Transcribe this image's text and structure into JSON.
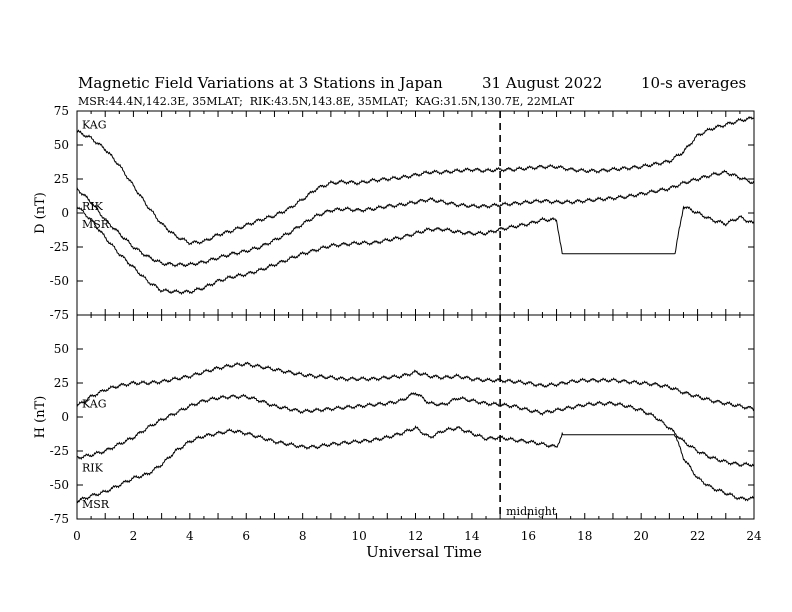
{
  "chart_data": {
    "type": "line",
    "title": "Magnetic Field Variations at 3 Stations in Japan",
    "date": "31  August  2022",
    "averaging": "10-s averages",
    "subtitle": "MSR:44.4N,142.3E, 35MLAT;  RIK:43.5N,143.8E, 35MLAT;  KAG:31.5N,130.7E, 22MLAT",
    "xlabel": "Universal Time",
    "xlim": [
      0,
      24
    ],
    "x_ticks": [
      "0",
      "2",
      "4",
      "6",
      "8",
      "10",
      "12",
      "14",
      "16",
      "18",
      "20",
      "22",
      "24"
    ],
    "y_ticks": [
      "75",
      "50",
      "25",
      "0",
      "-25",
      "-50",
      "-75"
    ],
    "annotation": {
      "text": "midnight",
      "x": 15
    },
    "panels": [
      {
        "ylabel": "D (nT)",
        "ylim": [
          -75,
          75
        ],
        "series": [
          {
            "name": "KAG",
            "x": [
              0,
              0.5,
              1,
              1.5,
              2,
              2.5,
              3,
              3.5,
              4,
              4.5,
              5,
              5.5,
              6,
              6.5,
              7,
              7.5,
              8,
              8.5,
              9,
              9.5,
              10,
              10.5,
              11,
              11.5,
              12,
              12.5,
              13,
              13.5,
              14,
              14.5,
              15,
              15.5,
              16,
              16.5,
              17,
              17.5,
              18,
              18.5,
              19,
              19.5,
              20,
              20.5,
              21,
              21.5,
              22,
              22.5,
              23,
              23.5,
              24
            ],
            "y": [
              60,
              55,
              47,
              35,
              20,
              5,
              -8,
              -17,
              -22,
              -21,
              -16,
              -13,
              -9,
              -5,
              -2,
              3,
              10,
              18,
              22,
              23,
              22,
              24,
              25,
              26,
              28,
              30,
              30,
              31,
              32,
              31,
              32,
              32,
              33,
              34,
              34,
              32,
              31,
              31,
              32,
              33,
              34,
              36,
              38,
              45,
              57,
              62,
              65,
              68,
              70
            ],
            "label_y": 65
          },
          {
            "name": "RIK",
            "x": [
              0,
              0.5,
              1,
              1.5,
              2,
              2.5,
              3,
              3.5,
              4,
              4.5,
              5,
              5.5,
              6,
              6.5,
              7,
              7.5,
              8,
              8.5,
              9,
              9.5,
              10,
              10.5,
              11,
              11.5,
              12,
              12.5,
              13,
              13.5,
              14,
              14.5,
              15,
              15.5,
              16,
              16.5,
              17,
              17.5,
              18,
              18.5,
              19,
              19.5,
              20,
              20.5,
              21,
              21.5,
              22,
              22.5,
              23,
              23.5,
              24
            ],
            "y": [
              18,
              8,
              -5,
              -15,
              -25,
              -32,
              -37,
              -38,
              -38,
              -36,
              -33,
              -30,
              -28,
              -25,
              -20,
              -15,
              -8,
              -2,
              2,
              3,
              2,
              3,
              5,
              6,
              8,
              10,
              8,
              6,
              5,
              5,
              6,
              7,
              8,
              9,
              8,
              8,
              9,
              10,
              11,
              12,
              14,
              16,
              18,
              22,
              25,
              28,
              30,
              26,
              22
            ],
            "label_y": 5
          },
          {
            "name": "MSR",
            "x": [
              0,
              0.5,
              1,
              1.5,
              2,
              2.5,
              3,
              3.5,
              4,
              4.5,
              5,
              5.5,
              6,
              6.5,
              7,
              7.5,
              8,
              8.5,
              9,
              9.5,
              10,
              10.5,
              11,
              11.5,
              12,
              12.5,
              13,
              13.5,
              14,
              14.5,
              15,
              15.5,
              16,
              16.5,
              17,
              17.2,
              17.5,
              18,
              18.5,
              19,
              19.5,
              20,
              20.5,
              21,
              21.2,
              21.5,
              22,
              22.5,
              23,
              23.5,
              24
            ],
            "y": [
              5,
              -5,
              -18,
              -30,
              -40,
              -50,
              -57,
              -58,
              -58,
              -55,
              -50,
              -47,
              -45,
              -42,
              -38,
              -34,
              -30,
              -27,
              -24,
              -23,
              -22,
              -22,
              -20,
              -18,
              -15,
              -12,
              -12,
              -14,
              -15,
              -15,
              -12,
              -10,
              -8,
              -5,
              -5,
              -30,
              -30,
              -30,
              -30,
              -30,
              -30,
              -30,
              -30,
              -30,
              -30,
              5,
              0,
              -5,
              -8,
              -3,
              -8
            ],
            "label_y": -8
          }
        ]
      },
      {
        "ylabel": "H (nT)",
        "ylim": [
          -75,
          75
        ],
        "series": [
          {
            "name": "KAG",
            "x": [
              0,
              0.5,
              1,
              1.5,
              2,
              2.5,
              3,
              3.5,
              4,
              4.5,
              5,
              5.5,
              6,
              6.5,
              7,
              7.5,
              8,
              8.5,
              9,
              9.5,
              10,
              10.5,
              11,
              11.5,
              12,
              12.5,
              13,
              13.5,
              14,
              14.5,
              15,
              15.5,
              16,
              16.5,
              17,
              17.5,
              18,
              18.5,
              19,
              19.5,
              20,
              20.5,
              21,
              21.5,
              22,
              22.5,
              23,
              23.5,
              24
            ],
            "y": [
              8,
              15,
              20,
              23,
              25,
              25,
              26,
              28,
              30,
              33,
              36,
              38,
              39,
              37,
              35,
              33,
              31,
              30,
              29,
              28,
              28,
              28,
              29,
              30,
              33,
              30,
              29,
              30,
              28,
              27,
              27,
              26,
              25,
              23,
              24,
              26,
              27,
              27,
              27,
              26,
              25,
              24,
              22,
              18,
              15,
              12,
              10,
              8,
              6
            ],
            "label_y": 10
          },
          {
            "name": "RIK",
            "x": [
              0,
              0.5,
              1,
              1.5,
              2,
              2.5,
              3,
              3.5,
              4,
              4.5,
              5,
              5.5,
              6,
              6.5,
              7,
              7.5,
              8,
              8.5,
              9,
              9.5,
              10,
              10.5,
              11,
              11.5,
              12,
              12.5,
              13,
              13.5,
              14,
              14.5,
              15,
              15.5,
              16,
              16.5,
              17,
              17.5,
              18,
              18.5,
              19,
              19.5,
              20,
              20.5,
              21,
              21.5,
              22,
              22.5,
              23,
              23.5,
              24
            ],
            "y": [
              -30,
              -28,
              -25,
              -20,
              -15,
              -8,
              -2,
              3,
              8,
              12,
              14,
              15,
              15,
              12,
              8,
              6,
              4,
              5,
              6,
              7,
              8,
              9,
              10,
              12,
              18,
              10,
              9,
              14,
              12,
              10,
              9,
              8,
              5,
              3,
              5,
              7,
              9,
              10,
              10,
              8,
              5,
              0,
              -8,
              -18,
              -25,
              -30,
              -33,
              -35,
              -35
            ],
            "label_y": -37
          },
          {
            "name": "MSR",
            "x": [
              0,
              0.5,
              1,
              1.5,
              2,
              2.5,
              3,
              3.5,
              4,
              4.5,
              5,
              5.5,
              6,
              6.5,
              7,
              7.5,
              8,
              8.5,
              9,
              9.5,
              10,
              10.5,
              11,
              11.5,
              12,
              12.5,
              13,
              13.5,
              14,
              14.5,
              15,
              15.5,
              16,
              16.5,
              17,
              17.2,
              17.5,
              18,
              18.5,
              19,
              19.5,
              20,
              20.5,
              21,
              21.2,
              21.5,
              22,
              22.5,
              23,
              23.5,
              24
            ],
            "y": [
              -62,
              -58,
              -55,
              -50,
              -45,
              -42,
              -35,
              -25,
              -18,
              -14,
              -12,
              -10,
              -12,
              -15,
              -18,
              -20,
              -22,
              -22,
              -20,
              -19,
              -18,
              -17,
              -15,
              -12,
              -8,
              -15,
              -10,
              -8,
              -12,
              -16,
              -15,
              -17,
              -18,
              -20,
              -22,
              -13,
              -13,
              -13,
              -13,
              -13,
              -13,
              -13,
              -13,
              -13,
              -13,
              -30,
              -45,
              -52,
              -56,
              -60,
              -60
            ],
            "label_y": -64
          }
        ]
      }
    ]
  }
}
